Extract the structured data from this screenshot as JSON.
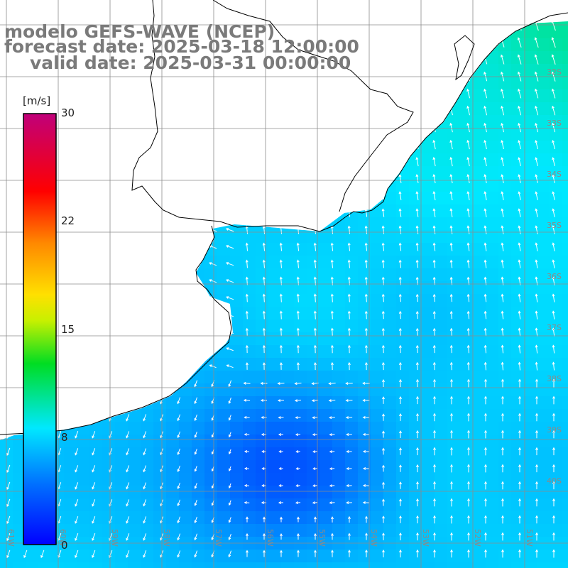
{
  "title": {
    "line1": "modelo GEFS-WAVE (NCEP)",
    "line2": "forecast date: 2025-03-18 12:00:00",
    "line3": "valid date: 2025-03-31 00:00:00"
  },
  "colorbar": {
    "unit": "[m/s]",
    "ticks": [
      "30",
      "22",
      "15",
      "8",
      "0"
    ],
    "range": [
      0,
      30
    ],
    "colors": [
      "#0000ff",
      "#0088ff",
      "#00e8ff",
      "#00dd00",
      "#ffff00",
      "#ff8800",
      "#ff0000",
      "#c00080"
    ]
  },
  "map": {
    "lat_labels": [
      "32S",
      "33S",
      "34S",
      "35S",
      "36S",
      "37S",
      "38S",
      "39S",
      "40S"
    ],
    "lon_labels": [
      "61W",
      "60W",
      "59W",
      "58W",
      "57W",
      "56W",
      "55W",
      "54W",
      "53W",
      "52W",
      "51W"
    ],
    "land_color": "#ffffff",
    "grid_color": "#8c8c8c",
    "coast_color": "#000000",
    "arrow_color": "#ffffff",
    "field": {
      "variable": "wind speed",
      "min_value": 3,
      "max_value": 10,
      "max_region": "northeast, off southern Brazil",
      "min_region": "south-center, near 39S 56W",
      "arrow_direction_north": "toward north",
      "arrow_direction_south_west": "toward south-southwest"
    }
  }
}
